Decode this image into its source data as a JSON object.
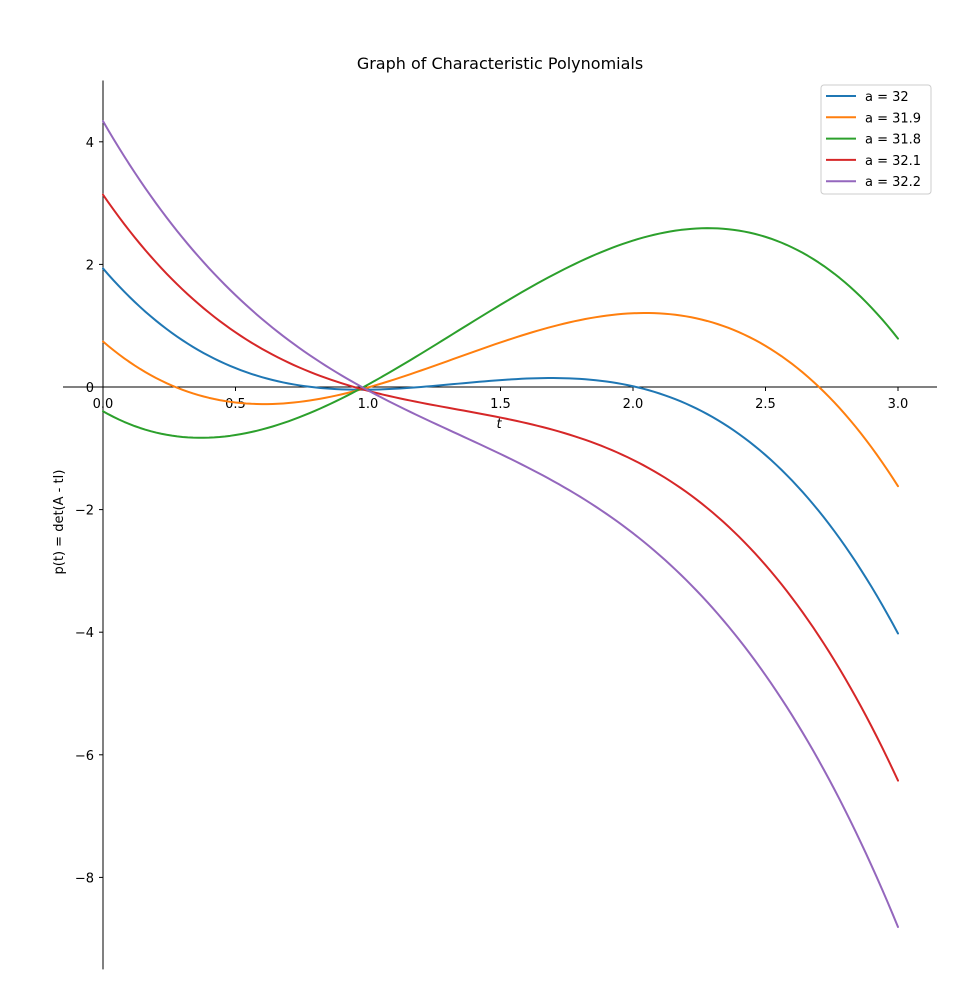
{
  "chart_data": {
    "type": "line",
    "title": "Graph of Characteristic Polynomials",
    "xlabel": "t",
    "ylabel": "p(t) = det(A - tI)",
    "xlim": [
      0.0,
      3.0
    ],
    "ylim": [
      -9.5,
      5.0
    ],
    "x_ticks": [
      0.0,
      0.5,
      1.0,
      1.5,
      2.0,
      2.5,
      3.0
    ],
    "x_tick_labels": [
      "0.0",
      "0.5",
      "1.0",
      "1.5",
      "2.0",
      "2.5",
      "3.0"
    ],
    "y_ticks": [
      4,
      2,
      0,
      -2,
      -4,
      -6,
      -8
    ],
    "y_tick_labels": [
      "4",
      "2",
      "0",
      "−2",
      "−4",
      "−6",
      "−8"
    ],
    "grid": false,
    "legend_position": "top-right",
    "x": [
      0.0,
      0.25,
      0.5,
      0.75,
      1.0,
      1.25,
      1.5,
      1.75,
      2.0,
      2.25,
      2.5,
      2.75,
      3.0
    ],
    "series": [
      {
        "name": "a = 32",
        "color": "#1f77b4",
        "values": [
          2.0,
          0.84,
          0.25,
          0.03,
          0.0,
          0.05,
          0.13,
          0.14,
          0.0,
          -0.39,
          -1.13,
          -2.3,
          -4.0
        ]
      },
      {
        "name": "a = 31.9",
        "color": "#ff7f0e",
        "values": [
          0.8,
          -0.06,
          -0.25,
          -0.2,
          0.0,
          0.35,
          0.73,
          1.04,
          1.2,
          1.11,
          0.67,
          -0.23,
          -1.6
        ]
      },
      {
        "name": "a = 31.8",
        "color": "#2ca02c",
        "values": [
          -0.4,
          -0.81,
          -0.75,
          -0.43,
          0.0,
          0.65,
          1.33,
          1.94,
          2.4,
          2.61,
          2.47,
          1.84,
          0.8
        ]
      },
      {
        "name": "a = 32.1",
        "color": "#d62728",
        "values": [
          3.2,
          1.74,
          0.85,
          0.26,
          0.0,
          -0.25,
          -0.48,
          -0.77,
          -1.2,
          -1.89,
          -2.93,
          -4.39,
          -6.4
        ]
      },
      {
        "name": "a = 32.2",
        "color": "#9467bd",
        "values": [
          4.4,
          2.64,
          1.45,
          0.59,
          0.0,
          -0.55,
          -1.07,
          -1.67,
          -2.4,
          -3.39,
          -4.73,
          -6.46,
          -8.8
        ]
      }
    ]
  }
}
